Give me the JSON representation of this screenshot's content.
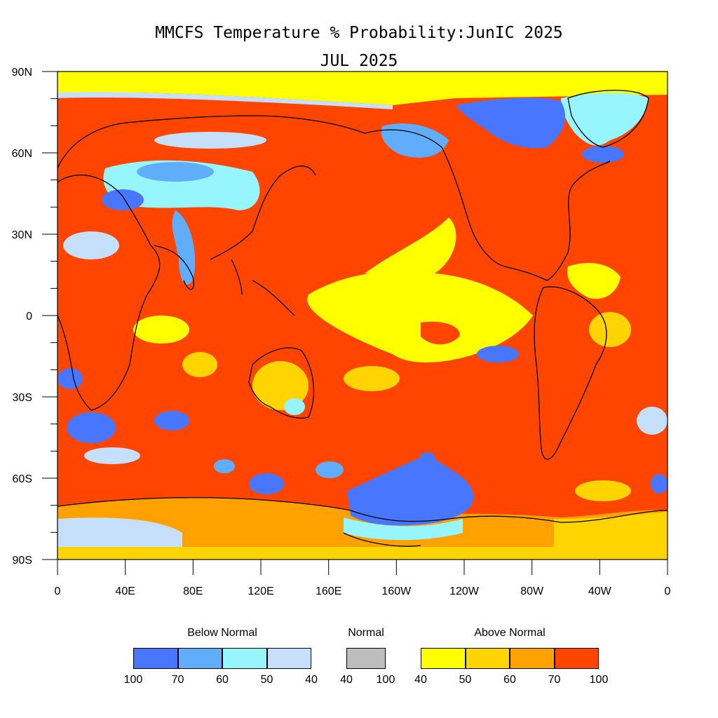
{
  "title_line1": "MMCFS Temperature % Probability:JunIC 2025",
  "title_line2": "JUL 2025",
  "lat_labels": [
    "90N",
    "60N",
    "30N",
    "0",
    "30S",
    "60S",
    "90S"
  ],
  "lon_labels": [
    "0",
    "40E",
    "80E",
    "120E",
    "160E",
    "160W",
    "120W",
    "80W",
    "40W",
    "0"
  ],
  "legend": {
    "below": {
      "title": "Below Normal",
      "colors": [
        "#4876ff",
        "#5fadfb",
        "#97f5fe",
        "#c6dffb"
      ],
      "ticks": [
        "100",
        "70",
        "60",
        "50",
        "40"
      ]
    },
    "normal": {
      "title": "Normal",
      "color": "#bdbdbd",
      "ticks": [
        "40",
        "100"
      ]
    },
    "above": {
      "title": "Above Normal",
      "colors": [
        "#ffff00",
        "#ffd400",
        "#ffa200",
        "#ff4500"
      ],
      "ticks": [
        "40",
        "50",
        "60",
        "70",
        "100"
      ]
    }
  },
  "colors": {
    "ocean_warm": "#ff4500",
    "polar": "#ffff00",
    "outline": "#000000"
  }
}
